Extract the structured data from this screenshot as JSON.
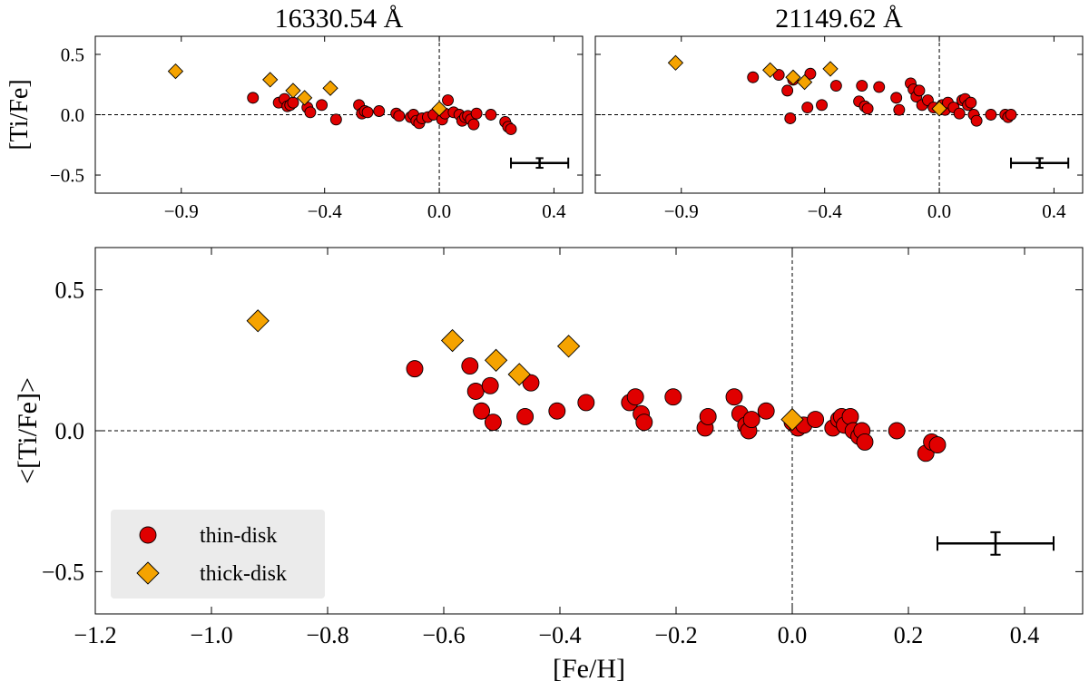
{
  "chart_data": [
    {
      "id": "top_left",
      "type": "scatter",
      "title": "16330.54 Å",
      "xlabel": "",
      "ylabel": "[Ti/Fe]",
      "xlim": [
        -1.2,
        0.5
      ],
      "ylim": [
        -0.65,
        0.65
      ],
      "xticks": [
        -0.9,
        -0.4,
        0.0,
        0.4
      ],
      "xtick_labels": [
        "−0.9",
        "−0.4",
        "0.0",
        "0.4"
      ],
      "yticks": [
        0.5,
        0.0,
        -0.5
      ],
      "ytick_labels": [
        "0.5",
        "0.0",
        "−0.5"
      ],
      "reference_lines": {
        "x": 0.0,
        "y": 0.0
      },
      "error_bar": {
        "x": 0.35,
        "y": -0.4,
        "xerr": 0.1,
        "yerr": 0.04
      },
      "series": [
        {
          "name": "thin-disk",
          "marker": "circle",
          "color": "#e00000",
          "x": [
            -0.65,
            -0.56,
            -0.54,
            -0.53,
            -0.52,
            -0.51,
            -0.46,
            -0.45,
            -0.41,
            -0.36,
            -0.28,
            -0.27,
            -0.26,
            -0.25,
            -0.21,
            -0.15,
            -0.14,
            -0.1,
            -0.09,
            -0.08,
            -0.07,
            -0.06,
            -0.04,
            -0.02,
            0.01,
            0.02,
            0.03,
            0.05,
            0.07,
            0.08,
            0.09,
            0.1,
            0.11,
            0.12,
            0.13,
            0.18,
            0.23,
            0.24,
            0.25
          ],
          "y": [
            0.14,
            0.1,
            0.13,
            0.07,
            0.08,
            0.1,
            0.06,
            0.02,
            0.08,
            -0.04,
            0.08,
            0.01,
            0.03,
            0.02,
            0.03,
            0.01,
            -0.01,
            -0.02,
            0.0,
            -0.05,
            -0.07,
            -0.03,
            -0.02,
            0.0,
            -0.04,
            0.01,
            0.12,
            0.02,
            0.0,
            -0.05,
            -0.02,
            -0.01,
            -0.04,
            -0.08,
            0.01,
            0.0,
            -0.06,
            -0.1,
            -0.12
          ]
        },
        {
          "name": "thick-disk",
          "marker": "diamond",
          "color": "#f5a300",
          "x": [
            -0.92,
            -0.59,
            -0.51,
            -0.47,
            -0.38,
            0.0
          ],
          "y": [
            0.36,
            0.29,
            0.2,
            0.14,
            0.22,
            0.05
          ]
        }
      ]
    },
    {
      "id": "top_right",
      "type": "scatter",
      "title": "21149.62 Å",
      "xlabel": "",
      "ylabel": "",
      "xlim": [
        -1.2,
        0.5
      ],
      "ylim": [
        -0.65,
        0.65
      ],
      "xticks": [
        -0.9,
        -0.4,
        0.0,
        0.4
      ],
      "xtick_labels": [
        "−0.9",
        "−0.4",
        "0.0",
        "0.4"
      ],
      "yticks": [
        0.5,
        0.0,
        -0.5
      ],
      "ytick_labels": [],
      "reference_lines": {
        "x": 0.0,
        "y": 0.0
      },
      "error_bar": {
        "x": 0.35,
        "y": -0.4,
        "xerr": 0.1,
        "yerr": 0.04
      },
      "series": [
        {
          "name": "thin-disk",
          "marker": "circle",
          "color": "#e00000",
          "x": [
            -0.65,
            -0.56,
            -0.53,
            -0.52,
            -0.51,
            -0.46,
            -0.45,
            -0.41,
            -0.36,
            -0.28,
            -0.27,
            -0.26,
            -0.25,
            -0.21,
            -0.15,
            -0.14,
            -0.1,
            -0.09,
            -0.08,
            -0.07,
            -0.06,
            -0.04,
            -0.02,
            0.01,
            0.02,
            0.03,
            0.05,
            0.07,
            0.08,
            0.09,
            0.1,
            0.11,
            0.12,
            0.13,
            0.18,
            0.23,
            0.24,
            0.25
          ],
          "y": [
            0.31,
            0.33,
            0.2,
            -0.03,
            0.29,
            0.06,
            0.34,
            0.08,
            0.24,
            0.11,
            0.24,
            0.07,
            0.05,
            0.23,
            0.14,
            0.04,
            0.26,
            0.21,
            0.15,
            0.2,
            0.08,
            0.12,
            0.06,
            0.08,
            0.04,
            0.1,
            0.06,
            0.01,
            0.12,
            0.13,
            0.08,
            0.1,
            0.0,
            -0.05,
            0.0,
            0.0,
            -0.02,
            0.0
          ]
        },
        {
          "name": "thick-disk",
          "marker": "diamond",
          "color": "#f5a300",
          "x": [
            -0.92,
            -0.59,
            -0.51,
            -0.47,
            -0.38,
            0.0
          ],
          "y": [
            0.43,
            0.37,
            0.31,
            0.27,
            0.38,
            0.05
          ]
        }
      ]
    },
    {
      "id": "bottom",
      "type": "scatter",
      "title": "",
      "xlabel": "[Fe/H]",
      "ylabel": "<[Ti/Fe]>",
      "xlim": [
        -1.2,
        0.5
      ],
      "ylim": [
        -0.65,
        0.65
      ],
      "xticks": [
        -1.2,
        -1.0,
        -0.8,
        -0.6,
        -0.4,
        -0.2,
        0.0,
        0.2,
        0.4
      ],
      "xtick_labels": [
        "−1.2",
        "−1.0",
        "−0.8",
        "−0.6",
        "−0.4",
        "−0.2",
        "0.0",
        "0.2",
        "0.4"
      ],
      "yticks": [
        0.5,
        0.0,
        -0.5
      ],
      "ytick_labels": [
        "0.5",
        "0.0",
        "−0.5"
      ],
      "reference_lines": {
        "x": 0.0,
        "y": 0.0
      },
      "error_bar": {
        "x": 0.35,
        "y": -0.4,
        "xerr": 0.1,
        "yerr": 0.04
      },
      "legend": {
        "position": "lower-left",
        "entries": [
          "thin-disk",
          "thick-disk"
        ]
      },
      "series": [
        {
          "name": "thin-disk",
          "marker": "circle",
          "color": "#e00000",
          "x": [
            -0.65,
            -0.555,
            -0.545,
            -0.535,
            -0.52,
            -0.515,
            -0.46,
            -0.45,
            -0.405,
            -0.355,
            -0.28,
            -0.27,
            -0.26,
            -0.255,
            -0.205,
            -0.15,
            -0.145,
            -0.1,
            -0.09,
            -0.08,
            -0.075,
            -0.07,
            -0.045,
            0.0,
            0.01,
            0.02,
            0.04,
            0.07,
            0.08,
            0.085,
            0.09,
            0.1,
            0.105,
            0.115,
            0.12,
            0.125,
            0.18,
            0.23,
            0.24,
            0.25
          ],
          "y": [
            0.22,
            0.23,
            0.14,
            0.07,
            0.16,
            0.03,
            0.05,
            0.17,
            0.07,
            0.1,
            0.1,
            0.12,
            0.06,
            0.03,
            0.12,
            0.01,
            0.05,
            0.12,
            0.06,
            0.02,
            0.0,
            0.04,
            0.07,
            0.03,
            0.01,
            0.02,
            0.04,
            0.01,
            0.04,
            0.05,
            0.02,
            0.05,
            0.0,
            -0.02,
            0.0,
            -0.04,
            0.0,
            -0.08,
            -0.04,
            -0.05
          ]
        },
        {
          "name": "thick-disk",
          "marker": "diamond",
          "color": "#f5a300",
          "x": [
            -0.92,
            -0.585,
            -0.51,
            -0.47,
            -0.385,
            -0.0
          ],
          "y": [
            0.39,
            0.32,
            0.25,
            0.2,
            0.3,
            0.04
          ]
        }
      ]
    }
  ]
}
